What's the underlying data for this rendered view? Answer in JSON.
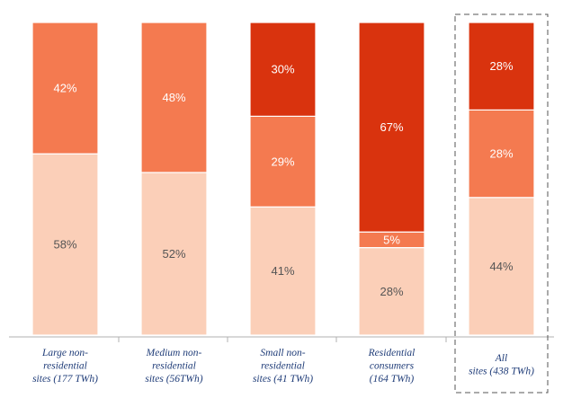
{
  "chart_data": {
    "type": "bar",
    "stacked": true,
    "normalized_to_percent": true,
    "categories": [
      [
        "Large non-",
        "residential",
        "sites (177 TWh)"
      ],
      [
        "Medium non-",
        "residential",
        "sites (56TWh)"
      ],
      [
        "Small  non-",
        "residential",
        "sites  (41 TWh)"
      ],
      [
        "Residential",
        "consumers",
        "(164 TWh)"
      ],
      [
        "All",
        "sites (438 TWh)"
      ]
    ],
    "series": [
      {
        "color": "#fbcfb8",
        "label_color": "#555555",
        "values": [
          58,
          52,
          41,
          28,
          44
        ],
        "labels": [
          "58%",
          "52%",
          "41%",
          "28%",
          "44%"
        ]
      },
      {
        "color": "#f47a50",
        "label_color": "#ffffff",
        "values": [
          42,
          48,
          29,
          5,
          28
        ],
        "labels": [
          "42%",
          "48%",
          "29%",
          "5%",
          "28%"
        ]
      },
      {
        "color": "#d9330e",
        "label_color": "#ffffff",
        "values": [
          0,
          0,
          30,
          67,
          28
        ],
        "labels": [
          "",
          "",
          "30%",
          "67%",
          "28%"
        ]
      }
    ],
    "highlighted_category_index": 4,
    "ylim": [
      0,
      100
    ],
    "grid": false,
    "legend": "none"
  }
}
